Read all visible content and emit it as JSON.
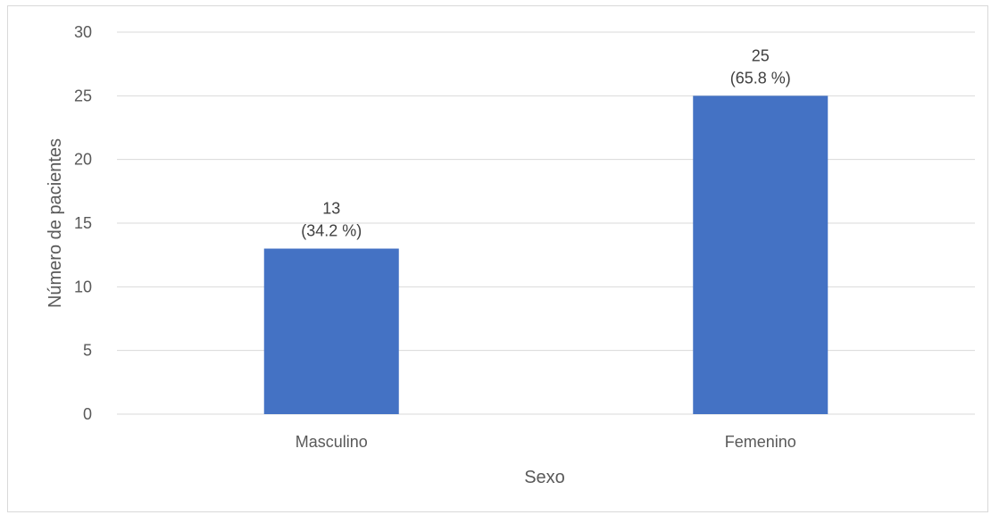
{
  "chart_data": {
    "type": "bar",
    "categories": [
      "Masculino",
      "Femenino"
    ],
    "values": [
      13,
      25
    ],
    "data_labels": [
      [
        "13",
        "(34.2 %)"
      ],
      [
        "25",
        "(65.8 %)"
      ]
    ],
    "title": "",
    "xlabel": "Sexo",
    "ylabel": "Número de pacientes",
    "ylim": [
      0,
      30
    ],
    "yticks": [
      0,
      5,
      10,
      15,
      20,
      25,
      30
    ],
    "ytick_labels": [
      "0",
      "5",
      "10",
      "15",
      "20",
      "25",
      "30"
    ],
    "grid": true,
    "legend": "none",
    "colors": {
      "bar": "#4472c4",
      "grid": "#d9d9d9",
      "axis": "#d9d9d9",
      "text": "#595959"
    }
  }
}
